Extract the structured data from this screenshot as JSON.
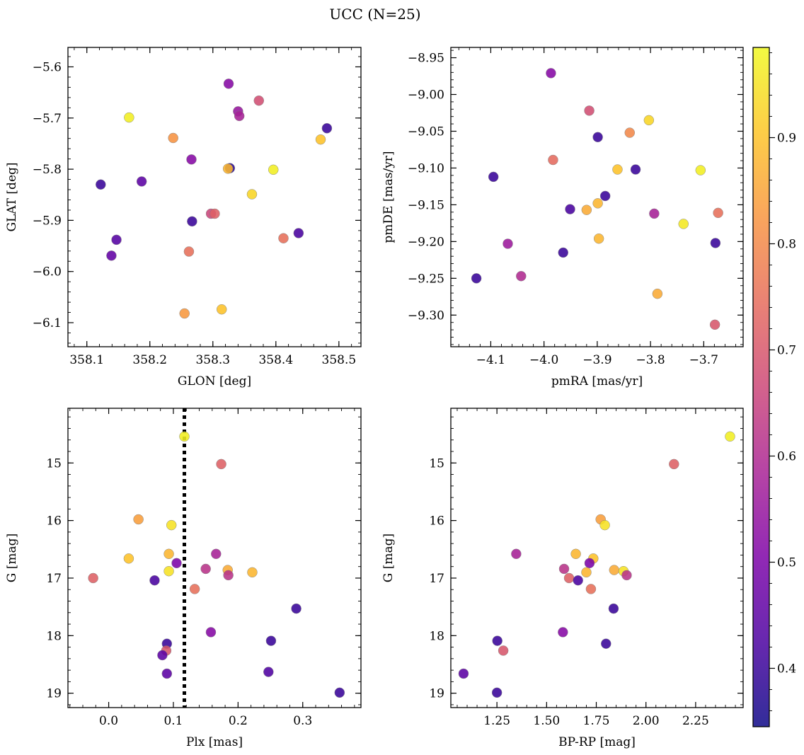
{
  "figure": {
    "suptitle": "UCC (N=25)",
    "colorbar": {
      "range": [
        0.345,
        0.985
      ],
      "ticks": [
        "0.4",
        "0.5",
        "0.6",
        "0.7",
        "0.8",
        "0.9"
      ],
      "tick_values": [
        0.4,
        0.5,
        0.6,
        0.7,
        0.8,
        0.9
      ],
      "colormap": "plasma"
    }
  },
  "chart_data": [
    {
      "type": "scatter",
      "xlabel": "GLON [deg]",
      "ylabel": "GLAT [deg]",
      "xlim": [
        358.07,
        358.535
      ],
      "ylim": [
        -6.147,
        -5.562
      ],
      "yinvert": false,
      "xticks": [
        358.1,
        358.2,
        358.3,
        358.4,
        358.5
      ],
      "xtick_labels": [
        "358.1",
        "358.2",
        "358.3",
        "358.4",
        "358.5"
      ],
      "yticks": [
        -5.6,
        -5.7,
        -5.8,
        -5.9,
        -6.0,
        -6.1
      ],
      "ytick_labels": [
        "−5.6",
        "−5.7",
        "−5.8",
        "−5.9",
        "−6.0",
        "−6.1"
      ],
      "points": [
        {
          "x": 358.167,
          "y": -5.699,
          "c": 0.97
        },
        {
          "x": 358.325,
          "y": -5.633,
          "c": 0.52
        },
        {
          "x": 358.373,
          "y": -5.666,
          "c": 0.68
        },
        {
          "x": 358.34,
          "y": -5.687,
          "c": 0.55
        },
        {
          "x": 358.342,
          "y": -5.696,
          "c": 0.58
        },
        {
          "x": 358.481,
          "y": -5.72,
          "c": 0.4
        },
        {
          "x": 358.237,
          "y": -5.739,
          "c": 0.82
        },
        {
          "x": 358.471,
          "y": -5.742,
          "c": 0.9
        },
        {
          "x": 358.266,
          "y": -5.781,
          "c": 0.52
        },
        {
          "x": 358.327,
          "y": -5.798,
          "c": 0.38
        },
        {
          "x": 358.324,
          "y": -5.799,
          "c": 0.88
        },
        {
          "x": 358.396,
          "y": -5.801,
          "c": 0.97
        },
        {
          "x": 358.122,
          "y": -5.83,
          "c": 0.4
        },
        {
          "x": 358.187,
          "y": -5.824,
          "c": 0.45
        },
        {
          "x": 358.362,
          "y": -5.849,
          "c": 0.93
        },
        {
          "x": 358.297,
          "y": -5.887,
          "c": 0.66
        },
        {
          "x": 358.303,
          "y": -5.887,
          "c": 0.72
        },
        {
          "x": 358.267,
          "y": -5.902,
          "c": 0.4
        },
        {
          "x": 358.147,
          "y": -5.938,
          "c": 0.44
        },
        {
          "x": 358.412,
          "y": -5.935,
          "c": 0.75
        },
        {
          "x": 358.436,
          "y": -5.925,
          "c": 0.42
        },
        {
          "x": 358.139,
          "y": -5.969,
          "c": 0.46
        },
        {
          "x": 358.262,
          "y": -5.961,
          "c": 0.75
        },
        {
          "x": 358.255,
          "y": -6.082,
          "c": 0.83
        },
        {
          "x": 358.314,
          "y": -6.074,
          "c": 0.9
        }
      ]
    },
    {
      "type": "scatter",
      "xlabel": "pmRA [mas/yr]",
      "ylabel": "pmDE [mas/yr]",
      "xlim": [
        -4.175,
        -3.626
      ],
      "ylim": [
        -9.343,
        -8.936
      ],
      "yinvert": false,
      "xticks": [
        -4.1,
        -4.0,
        -3.9,
        -3.8,
        -3.7
      ],
      "xtick_labels": [
        "−4.1",
        "−4.0",
        "−3.9",
        "−3.8",
        "−3.7"
      ],
      "yticks": [
        -8.95,
        -9.0,
        -9.05,
        -9.1,
        -9.15,
        -9.2,
        -9.25,
        -9.3
      ],
      "ytick_labels": [
        "−8.95",
        "−9.00",
        "−9.05",
        "−9.10",
        "−9.15",
        "−9.20",
        "−9.25",
        "−9.30"
      ],
      "points": [
        {
          "x": -3.987,
          "y": -8.971,
          "c": 0.52
        },
        {
          "x": -3.915,
          "y": -9.022,
          "c": 0.68
        },
        {
          "x": -3.803,
          "y": -9.035,
          "c": 0.93
        },
        {
          "x": -3.839,
          "y": -9.052,
          "c": 0.8
        },
        {
          "x": -3.899,
          "y": -9.058,
          "c": 0.4
        },
        {
          "x": -3.983,
          "y": -9.089,
          "c": 0.74
        },
        {
          "x": -3.862,
          "y": -9.102,
          "c": 0.9
        },
        {
          "x": -3.828,
          "y": -9.102,
          "c": 0.4
        },
        {
          "x": -3.706,
          "y": -9.103,
          "c": 0.97
        },
        {
          "x": -4.095,
          "y": -9.112,
          "c": 0.4
        },
        {
          "x": -3.885,
          "y": -9.138,
          "c": 0.4
        },
        {
          "x": -3.899,
          "y": -9.148,
          "c": 0.88
        },
        {
          "x": -3.951,
          "y": -9.156,
          "c": 0.42
        },
        {
          "x": -3.92,
          "y": -9.157,
          "c": 0.86
        },
        {
          "x": -3.793,
          "y": -9.162,
          "c": 0.58
        },
        {
          "x": -3.673,
          "y": -9.161,
          "c": 0.75
        },
        {
          "x": -3.738,
          "y": -9.176,
          "c": 0.96
        },
        {
          "x": -3.897,
          "y": -9.196,
          "c": 0.88
        },
        {
          "x": -4.068,
          "y": -9.203,
          "c": 0.56
        },
        {
          "x": -3.678,
          "y": -9.202,
          "c": 0.4
        },
        {
          "x": -3.964,
          "y": -9.215,
          "c": 0.4
        },
        {
          "x": -4.043,
          "y": -9.247,
          "c": 0.6
        },
        {
          "x": -4.127,
          "y": -9.25,
          "c": 0.4
        },
        {
          "x": -3.787,
          "y": -9.271,
          "c": 0.86
        },
        {
          "x": -3.679,
          "y": -9.313,
          "c": 0.7
        }
      ]
    },
    {
      "type": "scatter",
      "xlabel": "Plx [mas]",
      "ylabel": "G [mag]",
      "xlim": [
        -0.063,
        0.39
      ],
      "ylim": [
        19.25,
        14.05
      ],
      "yinvert": true,
      "vline": 0.117,
      "xticks": [
        0.0,
        0.1,
        0.2,
        0.3
      ],
      "xtick_labels": [
        "0.0",
        "0.1",
        "0.2",
        "0.3"
      ],
      "yticks": [
        15,
        16,
        17,
        18,
        19
      ],
      "ytick_labels": [
        "15",
        "16",
        "17",
        "18",
        "19"
      ],
      "points": [
        {
          "x": 0.117,
          "y": 14.54,
          "c": 0.97
        },
        {
          "x": 0.174,
          "y": 15.02,
          "c": 0.72
        },
        {
          "x": 0.046,
          "y": 15.98,
          "c": 0.84
        },
        {
          "x": 0.097,
          "y": 16.08,
          "c": 0.95
        },
        {
          "x": 0.166,
          "y": 16.58,
          "c": 0.58
        },
        {
          "x": 0.093,
          "y": 16.58,
          "c": 0.88
        },
        {
          "x": 0.031,
          "y": 16.66,
          "c": 0.9
        },
        {
          "x": 0.105,
          "y": 16.74,
          "c": 0.5
        },
        {
          "x": 0.15,
          "y": 16.84,
          "c": 0.62
        },
        {
          "x": 0.184,
          "y": 16.86,
          "c": 0.86
        },
        {
          "x": 0.093,
          "y": 16.88,
          "c": 0.95
        },
        {
          "x": 0.222,
          "y": 16.9,
          "c": 0.88
        },
        {
          "x": 0.185,
          "y": 16.95,
          "c": 0.62
        },
        {
          "x": -0.024,
          "y": 17.0,
          "c": 0.72
        },
        {
          "x": 0.071,
          "y": 17.04,
          "c": 0.42
        },
        {
          "x": 0.133,
          "y": 17.19,
          "c": 0.75
        },
        {
          "x": 0.29,
          "y": 17.53,
          "c": 0.4
        },
        {
          "x": 0.158,
          "y": 17.94,
          "c": 0.52
        },
        {
          "x": 0.251,
          "y": 18.09,
          "c": 0.4
        },
        {
          "x": 0.09,
          "y": 18.14,
          "c": 0.4
        },
        {
          "x": 0.089,
          "y": 18.26,
          "c": 0.7
        },
        {
          "x": 0.083,
          "y": 18.34,
          "c": 0.45
        },
        {
          "x": 0.247,
          "y": 18.63,
          "c": 0.43
        },
        {
          "x": 0.09,
          "y": 18.66,
          "c": 0.45
        },
        {
          "x": 0.357,
          "y": 18.99,
          "c": 0.4
        }
      ]
    },
    {
      "type": "scatter",
      "xlabel": "BP-RP [mag]",
      "ylabel": "G [mag]",
      "xlim": [
        1.018,
        2.489
      ],
      "ylim": [
        19.25,
        14.05
      ],
      "yinvert": true,
      "xticks": [
        1.25,
        1.5,
        1.75,
        2.0,
        2.25
      ],
      "xtick_labels": [
        "1.25",
        "1.50",
        "1.75",
        "2.00",
        "2.25"
      ],
      "yticks": [
        15,
        16,
        17,
        18,
        19
      ],
      "ytick_labels": [
        "15",
        "16",
        "17",
        "18",
        "19"
      ],
      "points": [
        {
          "x": 2.423,
          "y": 14.54,
          "c": 0.97
        },
        {
          "x": 2.141,
          "y": 15.02,
          "c": 0.72
        },
        {
          "x": 1.772,
          "y": 15.98,
          "c": 0.84
        },
        {
          "x": 1.793,
          "y": 16.08,
          "c": 0.95
        },
        {
          "x": 1.347,
          "y": 16.58,
          "c": 0.58
        },
        {
          "x": 1.647,
          "y": 16.58,
          "c": 0.88
        },
        {
          "x": 1.735,
          "y": 16.66,
          "c": 0.9
        },
        {
          "x": 1.716,
          "y": 16.74,
          "c": 0.5
        },
        {
          "x": 1.588,
          "y": 16.84,
          "c": 0.62
        },
        {
          "x": 1.84,
          "y": 16.86,
          "c": 0.86
        },
        {
          "x": 1.887,
          "y": 16.88,
          "c": 0.95
        },
        {
          "x": 1.7,
          "y": 16.9,
          "c": 0.88
        },
        {
          "x": 1.903,
          "y": 16.95,
          "c": 0.62
        },
        {
          "x": 1.613,
          "y": 17.0,
          "c": 0.72
        },
        {
          "x": 1.658,
          "y": 17.04,
          "c": 0.42
        },
        {
          "x": 1.723,
          "y": 17.19,
          "c": 0.75
        },
        {
          "x": 1.837,
          "y": 17.53,
          "c": 0.4
        },
        {
          "x": 1.582,
          "y": 17.94,
          "c": 0.52
        },
        {
          "x": 1.252,
          "y": 18.09,
          "c": 0.4
        },
        {
          "x": 1.799,
          "y": 18.14,
          "c": 0.4
        },
        {
          "x": 1.282,
          "y": 18.26,
          "c": 0.7
        },
        {
          "x": 1.082,
          "y": 18.66,
          "c": 0.45
        },
        {
          "x": 1.25,
          "y": 18.99,
          "c": 0.4
        }
      ]
    }
  ]
}
